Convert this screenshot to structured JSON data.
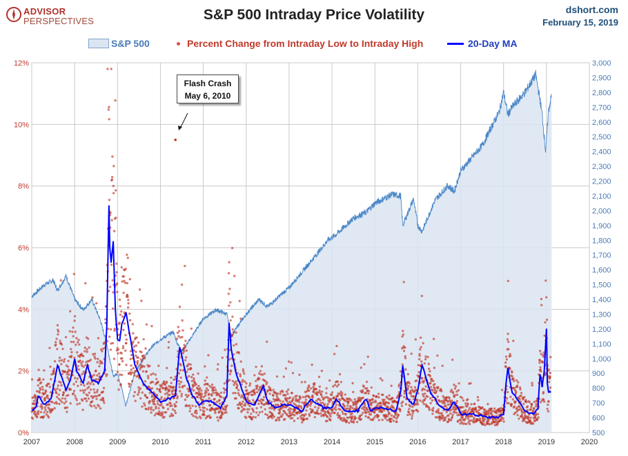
{
  "header": {
    "logo_top": "ADVISOR",
    "logo_bottom": "PERSPECTIVES",
    "title": "S&P 500 Intraday Price Volatility",
    "site": "dshort.com",
    "date": "February 15, 2019"
  },
  "legend": {
    "area_label": "S&P 500",
    "dots_label": "Percent Change from Intraday Low to Intraday High",
    "line_label": "20-Day MA"
  },
  "annotation": {
    "line1": "Flash Crash",
    "line2": "May 6, 2010"
  },
  "colors": {
    "area_fill": "#dbe5f1",
    "area_line": "#4a86c8",
    "dots": "#c0392b",
    "ma_line": "#0000ff",
    "left_axis": "#c0392b",
    "right_axis": "#4a7ab7"
  },
  "chart_data": {
    "type": "line",
    "title": "S&P 500 Intraday Price Volatility",
    "grid": true,
    "legend_position": "top",
    "x_axis": {
      "ticks": [
        "2007",
        "2008",
        "2009",
        "2010",
        "2011",
        "2012",
        "2013",
        "2014",
        "2015",
        "2016",
        "2017",
        "2018",
        "2019",
        "2020"
      ],
      "range": [
        2007,
        2020
      ]
    },
    "y_left": {
      "ticks": [
        "0%",
        "2%",
        "4%",
        "6%",
        "8%",
        "10%",
        "12%"
      ],
      "range": [
        0,
        12
      ],
      "unit": "%"
    },
    "y_right": {
      "ticks": [
        "500",
        "600",
        "700",
        "800",
        "900",
        "1,000",
        "1,100",
        "1,200",
        "1,300",
        "1,400",
        "1,500",
        "1,600",
        "1,700",
        "1,800",
        "1,900",
        "2,000",
        "2,100",
        "2,200",
        "2,300",
        "2,400",
        "2,500",
        "2,600",
        "2,700",
        "2,800",
        "2,900",
        "3,000"
      ],
      "range": [
        500,
        3000
      ]
    },
    "series": [
      {
        "name": "S&P 500",
        "style": "area",
        "axis": "right",
        "x": [
          2007.0,
          2007.3,
          2007.5,
          2007.6,
          2007.8,
          2008.0,
          2008.2,
          2008.4,
          2008.6,
          2008.75,
          2008.9,
          2009.0,
          2009.1,
          2009.19,
          2009.4,
          2009.6,
          2009.8,
          2010.0,
          2010.3,
          2010.4,
          2010.5,
          2010.6,
          2010.8,
          2011.0,
          2011.3,
          2011.55,
          2011.65,
          2011.8,
          2012.0,
          2012.3,
          2012.5,
          2012.8,
          2013.0,
          2013.4,
          2013.6,
          2013.9,
          2014.1,
          2014.5,
          2014.8,
          2015.0,
          2015.4,
          2015.6,
          2015.65,
          2015.9,
          2016.0,
          2016.1,
          2016.4,
          2016.7,
          2016.85,
          2017.0,
          2017.5,
          2017.9,
          2018.0,
          2018.1,
          2018.2,
          2018.5,
          2018.75,
          2018.85,
          2018.9,
          2018.98,
          2019.05,
          2019.12
        ],
        "values": [
          1420,
          1500,
          1530,
          1460,
          1560,
          1400,
          1330,
          1400,
          1260,
          1100,
          880,
          900,
          800,
          680,
          900,
          1000,
          1080,
          1130,
          1180,
          1100,
          1050,
          1090,
          1180,
          1270,
          1330,
          1300,
          1150,
          1220,
          1300,
          1400,
          1350,
          1430,
          1480,
          1620,
          1690,
          1800,
          1840,
          1950,
          1990,
          2050,
          2110,
          2100,
          1900,
          2080,
          1900,
          1860,
          2070,
          2170,
          2130,
          2270,
          2440,
          2670,
          2800,
          2650,
          2700,
          2800,
          2920,
          2750,
          2650,
          2400,
          2680,
          2780
        ]
      },
      {
        "name": "20-Day MA",
        "style": "line",
        "axis": "left",
        "unit": "%",
        "x": [
          2007.0,
          2007.1,
          2007.15,
          2007.3,
          2007.45,
          2007.6,
          2007.8,
          2007.9,
          2008.0,
          2008.05,
          2008.2,
          2008.3,
          2008.4,
          2008.55,
          2008.7,
          2008.75,
          2008.8,
          2008.82,
          2008.85,
          2008.9,
          2008.95,
          2009.0,
          2009.05,
          2009.1,
          2009.2,
          2009.4,
          2009.6,
          2009.8,
          2010.0,
          2010.2,
          2010.35,
          2010.45,
          2010.6,
          2010.75,
          2010.9,
          2011.0,
          2011.2,
          2011.4,
          2011.55,
          2011.6,
          2011.65,
          2011.75,
          2011.9,
          2012.0,
          2012.2,
          2012.4,
          2012.5,
          2012.7,
          2012.9,
          2013.0,
          2013.3,
          2013.5,
          2013.8,
          2014.0,
          2014.1,
          2014.3,
          2014.6,
          2014.8,
          2014.9,
          2015.0,
          2015.2,
          2015.5,
          2015.6,
          2015.65,
          2015.75,
          2015.9,
          2016.0,
          2016.1,
          2016.3,
          2016.5,
          2016.7,
          2016.85,
          2017.0,
          2017.3,
          2017.6,
          2017.9,
          2018.0,
          2018.05,
          2018.1,
          2018.2,
          2018.3,
          2018.5,
          2018.7,
          2018.8,
          2018.85,
          2018.9,
          2018.95,
          2019.0,
          2019.02,
          2019.05,
          2019.1
        ],
        "values": [
          0.7,
          0.8,
          1.2,
          0.9,
          1.1,
          2.2,
          1.4,
          1.7,
          2.4,
          2.0,
          1.6,
          2.2,
          1.7,
          1.6,
          2.0,
          3.5,
          7.4,
          6.0,
          5.5,
          6.2,
          4.0,
          3.0,
          3.0,
          3.5,
          3.9,
          2.2,
          1.6,
          1.3,
          1.0,
          1.1,
          1.2,
          2.8,
          1.8,
          1.2,
          0.9,
          1.0,
          1.0,
          0.8,
          1.2,
          3.6,
          2.7,
          2.0,
          1.4,
          1.0,
          0.9,
          1.5,
          1.0,
          0.8,
          0.9,
          0.9,
          0.7,
          1.1,
          0.8,
          0.8,
          1.1,
          0.7,
          0.7,
          1.1,
          0.7,
          0.8,
          0.8,
          0.7,
          1.3,
          2.2,
          1.1,
          0.9,
          1.4,
          2.2,
          1.3,
          0.9,
          0.7,
          1.0,
          0.6,
          0.6,
          0.5,
          0.5,
          0.6,
          1.5,
          2.1,
          1.3,
          1.1,
          0.7,
          0.6,
          0.8,
          1.9,
          1.5,
          2.0,
          3.4,
          1.6,
          1.3,
          1.3
        ]
      }
    ],
    "annotations": [
      {
        "text": "Flash Crash May 6, 2010",
        "x": 2010.35,
        "y": 9.5
      }
    ]
  }
}
